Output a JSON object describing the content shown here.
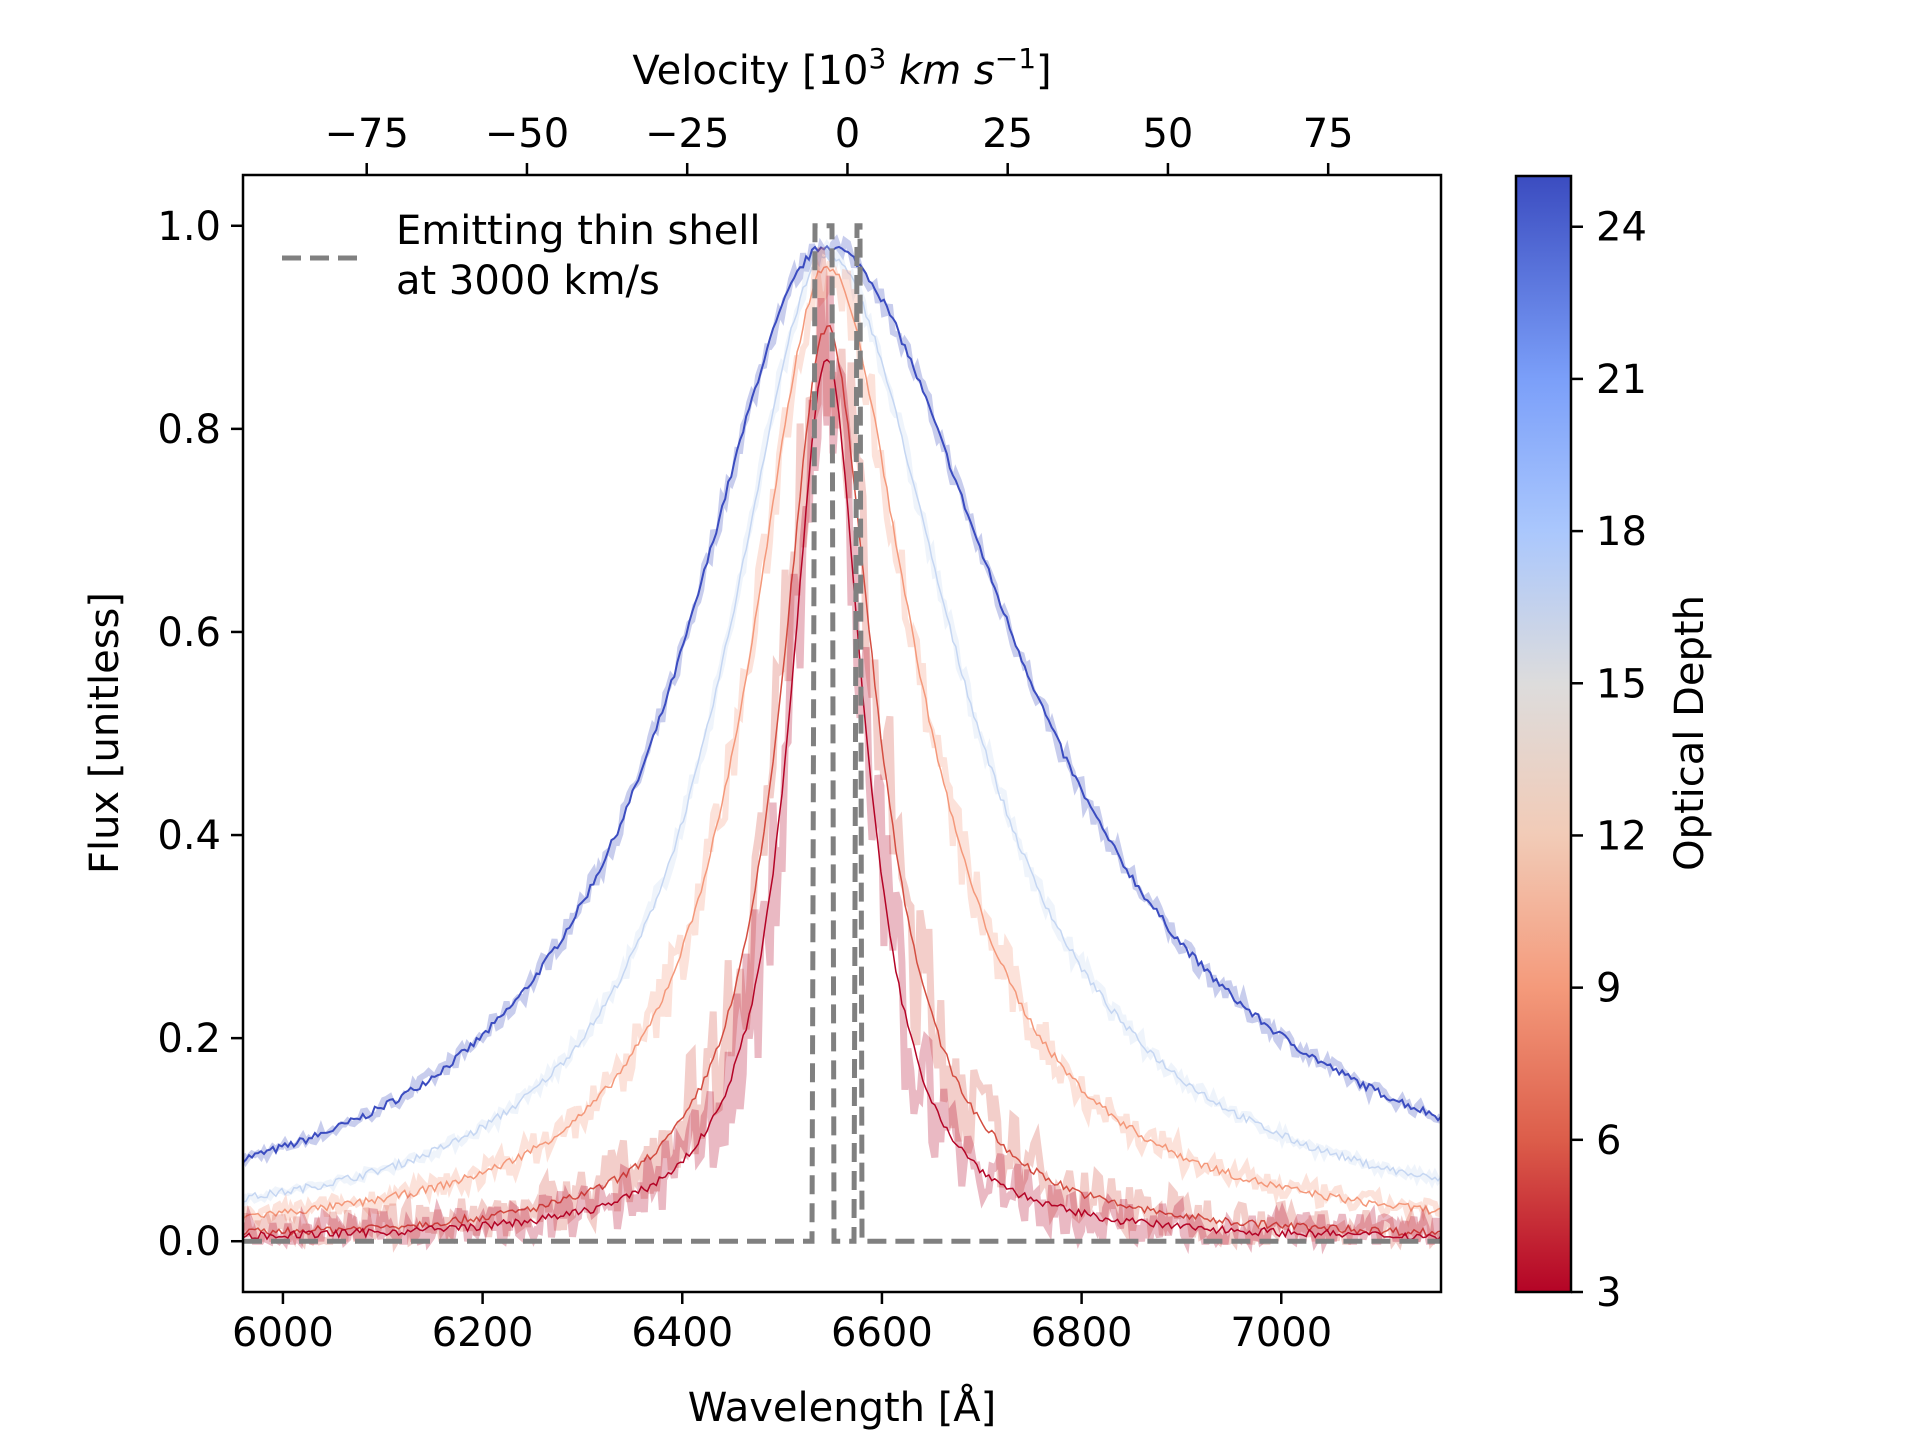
{
  "chart_data": {
    "type": "line",
    "title": "",
    "xlabel": "Wavelength [Å]",
    "ylabel": "Flux [unitless]",
    "top_xlabel_main": "Velocity [10",
    "top_xlabel_sup": "3",
    "top_xlabel_unit_km": "km",
    "top_xlabel_unit_s": "s",
    "top_xlabel_sup2": "−1",
    "top_xlabel_close": "]",
    "xlim": [
      5960,
      7160
    ],
    "ylim": [
      -0.05,
      1.05
    ],
    "top_xlim": [
      -94.3,
      92.6
    ],
    "x_ticks": [
      6000,
      6200,
      6400,
      6600,
      6800,
      7000
    ],
    "x_tick_labels": [
      "6000",
      "6200",
      "6400",
      "6600",
      "6800",
      "7000"
    ],
    "y_ticks": [
      0.0,
      0.2,
      0.4,
      0.6,
      0.8,
      1.0
    ],
    "y_tick_labels": [
      "0.0",
      "0.2",
      "0.4",
      "0.6",
      "0.8",
      "1.0"
    ],
    "top_ticks": [
      -75,
      -50,
      -25,
      0,
      25,
      50,
      75
    ],
    "top_tick_labels": [
      "−75",
      "−50",
      "−25",
      "0",
      "25",
      "50",
      "75"
    ],
    "line_center": 6545,
    "colorbar": {
      "label": "Optical Depth",
      "range": [
        3,
        25
      ],
      "ticks": [
        3,
        6,
        9,
        12,
        15,
        18,
        21,
        24
      ],
      "tick_labels": [
        "3",
        "6",
        "9",
        "12",
        "15",
        "18",
        "21",
        "24"
      ],
      "colors": [
        "#b40426",
        "#dc5d4a",
        "#f49a7b",
        "#f2cbb7",
        "#dddcdc",
        "#aac7fd",
        "#7b9ff9",
        "#3b4cc0"
      ]
    },
    "legend": {
      "line1": "Emitting thin shell",
      "line2": "at 3000 km/s",
      "position": "upper-left"
    },
    "shell": {
      "name": "Emitting thin shell at 3000 km/s",
      "color": "#808080",
      "x": [
        5960,
        6530,
        6533,
        6550,
        6552,
        6572,
        6575,
        6578,
        6580,
        7160
      ],
      "y": [
        0,
        0,
        1.0,
        1.0,
        0.0,
        0.0,
        1.0,
        1.0,
        0,
        0
      ]
    },
    "series": [
      {
        "name": "optical depth 25",
        "tau": 25,
        "color": "#3b4cc0",
        "peak": 0.98,
        "w_blue": 176,
        "w_red": 232
      },
      {
        "name": "optical depth 15",
        "tau": 15,
        "color": "#c5d6f2",
        "peak": 0.97,
        "w_blue": 125,
        "w_red": 158
      },
      {
        "name": "optical depth 10",
        "tau": 10,
        "color": "#f4987a",
        "peak": 0.96,
        "w_blue": 95,
        "w_red": 110
      },
      {
        "name": "optical depth 6",
        "tau": 6,
        "color": "#d44e41",
        "peak": 0.9,
        "w_blue": 72,
        "w_red": 76
      },
      {
        "name": "optical depth 3",
        "tau": 3,
        "color": "#b40426",
        "peak": 0.87,
        "w_blue": 58,
        "w_red": 58
      }
    ]
  }
}
